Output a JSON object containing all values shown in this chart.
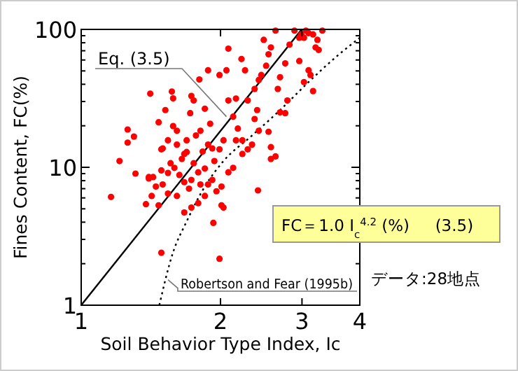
{
  "chart_data": {
    "type": "scatter",
    "xlabel": "Soil Behavior Type Index, Ic",
    "ylabel": "Fines Content, FC(%)",
    "log": "xy",
    "grid": false,
    "xlim": [
      1,
      4
    ],
    "xticks": [
      1,
      2,
      3,
      4
    ],
    "ylim": [
      1,
      100
    ],
    "yticks": [
      1,
      {
        "value": 2,
        "label": null
      },
      {
        "value": 3,
        "label": null
      },
      {
        "value": 4,
        "label": null
      },
      {
        "value": 5,
        "label": null
      },
      {
        "value": 6,
        "label": null
      },
      {
        "value": 7,
        "label": null
      },
      {
        "value": 8,
        "label": null
      },
      {
        "value": 9,
        "label": null
      },
      10,
      {
        "value": 20,
        "label": null
      },
      {
        "value": 30,
        "label": null
      },
      {
        "value": 40,
        "label": null
      },
      {
        "value": 50,
        "label": null
      },
      {
        "value": 60,
        "label": null
      },
      {
        "value": 70,
        "label": null
      },
      {
        "value": 80,
        "label": null
      },
      {
        "value": 90,
        "label": null
      },
      100
    ],
    "series": [
      {
        "color": "#ff0000",
        "marker": "circle",
        "x": [
          1.16,
          1.21,
          1.26,
          1.26,
          1.31,
          1.3,
          1.41,
          1.4,
          1.38,
          1.49,
          1.47,
          1.52,
          1.57,
          1.58,
          1.49,
          1.58,
          1.61,
          1.69,
          1.67,
          1.73,
          1.75,
          1.72,
          1.8,
          1.85,
          1.9,
          1.88,
          1.99,
          2.08,
          2.06,
          2.22,
          2.26,
          2.37,
          2.42,
          2.45,
          2.48,
          2.57,
          2.54,
          2.51,
          2.63,
          2.69,
          2.76,
          2.66,
          2.79,
          2.82,
          2.96,
          3.03,
          3.1,
          3.13,
          3.17,
          3.06,
          3.1,
          3.17,
          3.24,
          3.32,
          3.21,
          3.26,
          3.03,
          2.96,
          2.99,
          2.89,
          2.76,
          2.42,
          2.54,
          2.57,
          2.63,
          2.57,
          2.69,
          2.37,
          2.4,
          2.23,
          2.18,
          2.13,
          2.16,
          2.29,
          2.08,
          2.03,
          1.99,
          1.94,
          2.08,
          2.13,
          2.01,
          1.96,
          2.01,
          2.03,
          1.99,
          1.93,
          2.41,
          2.23,
          2.29,
          1.83,
          1.88,
          1.92,
          1.77,
          1.81,
          1.75,
          1.79,
          1.73,
          1.81,
          1.85,
          1.79,
          1.73,
          1.67,
          1.61,
          1.54,
          1.5,
          1.45,
          1.42,
          1.4,
          1.47,
          1.54,
          1.59,
          1.63,
          1.67,
          1.56,
          1.49,
          1.43,
          1.71,
          1.65,
          1.69,
          1.92,
          1.88,
          1.85,
          2.16,
          2.34,
          1.5,
          1.54,
          1.61
        ],
        "values": [
          6.1,
          11.1,
          18.8,
          15.1,
          9.0,
          16.7,
          34.2,
          8.3,
          5.4,
          2.4,
          21.2,
          26,
          35.4,
          31.6,
          13.5,
          19.9,
          18.4,
          15.7,
          12.5,
          32.9,
          30.5,
          24.7,
          43.3,
          26.6,
          20.7,
          50.5,
          46.7,
          72.5,
          50.5,
          61,
          50.5,
          37,
          43,
          46.7,
          84,
          74,
          66,
          54.5,
          98,
          45,
          56.7,
          37,
          30.5,
          77.5,
          59,
          41.5,
          50.5,
          46.7,
          35.7,
          98,
          94,
          92,
          84,
          98,
          74,
          71,
          87,
          87,
          92,
          98,
          24.7,
          18.4,
          18.1,
          14,
          12,
          11.5,
          25,
          22.4,
          26,
          15.7,
          19.1,
          23.3,
          31.5,
          30.5,
          30.5,
          15.7,
          13.5,
          11.1,
          9.2,
          9.9,
          7.25,
          6.7,
          5.3,
          5.1,
          2.17,
          3.95,
          6.8,
          12.5,
          13.5,
          13,
          14.6,
          13.7,
          17,
          18.4,
          10.7,
          9.2,
          8.1,
          7.5,
          6.2,
          5.5,
          5.1,
          4.7,
          6.2,
          6.45,
          7.5,
          7.25,
          6.2,
          8.5,
          5.3,
          9.1,
          9.9,
          8.8,
          7.8,
          10.7,
          9.5,
          8.5,
          7,
          11.5,
          12.9,
          8.1,
          7.5,
          9.8,
          15.7,
          14.6,
          13.7,
          15.7,
          14.6
        ]
      },
      {
        "type": "line",
        "color": "#000000",
        "line_style": "solid",
        "x": [
          1,
          2.995
        ],
        "values": [
          1,
          100
        ]
      },
      {
        "type": "line",
        "color": "#000000",
        "line_style": "dotted",
        "x": [
          1.475,
          1.575,
          1.69,
          1.85,
          2.03,
          2.34,
          2.69,
          3.1,
          3.56,
          4
        ],
        "values": [
          1,
          2.35,
          4.05,
          7.25,
          11.1,
          17,
          26,
          41.5,
          63.5,
          87
        ]
      }
    ],
    "annotations": [
      {
        "text": "Eq. (3.5)",
        "x": 2.06,
        "y": 23.3
      },
      {
        "text": "Robertson and Fear (1995b)",
        "x": 1.54,
        "y": 1.53
      },
      "FC＝1.0 I$_{c}$$^{4.2}$ (%)     (3.5)",
      "データ:28地点"
    ]
  }
}
